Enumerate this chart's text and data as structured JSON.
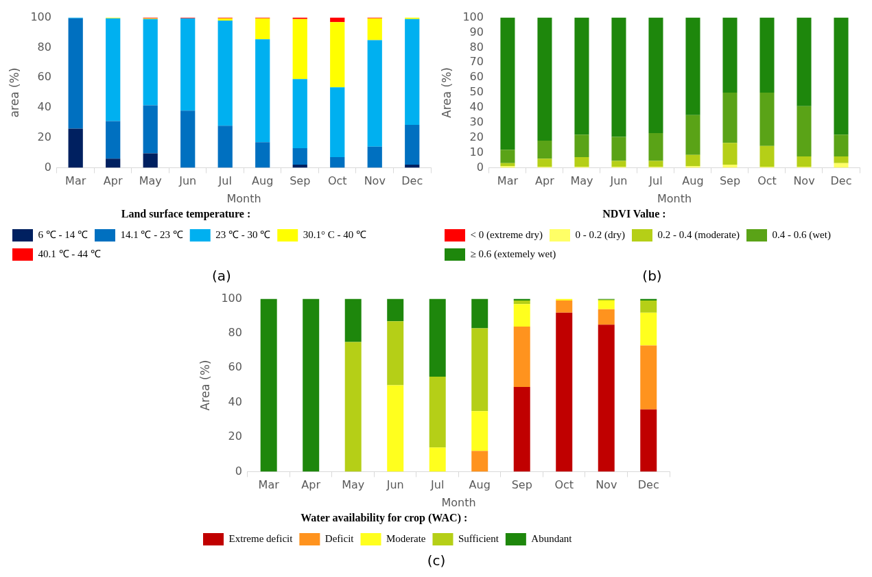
{
  "chart_data": [
    {
      "type": "bar",
      "stacked": true,
      "xlabel": "Month",
      "ylabel": "area (%)",
      "legend_title": "Land surface temperature :",
      "legend": "bottom",
      "grid": false,
      "annotations": [
        "(a)"
      ],
      "categories": [
        "Mar",
        "Apr",
        "May",
        "Jun",
        "Jul",
        "Aug",
        "Sep",
        "Oct",
        "Nov",
        "Dec"
      ],
      "ylim": [
        0,
        100
      ],
      "yticks": [
        0,
        20,
        40,
        60,
        80,
        100
      ],
      "series": [
        {
          "name": "6 ℃ - 14 ℃",
          "color": "#002060",
          "values": [
            26,
            6,
            9.5,
            0,
            0,
            0,
            2,
            0,
            0,
            2
          ]
        },
        {
          "name": "14.1 ℃ - 23 ℃",
          "color": "#0070c0",
          "values": [
            73.5,
            25,
            32,
            38,
            28,
            17,
            11,
            7,
            14,
            26.5
          ]
        },
        {
          "name": "23 ℃ - 30 ℃",
          "color": "#00b0f0",
          "values": [
            0.5,
            68.5,
            57.5,
            61.5,
            70,
            68.5,
            46,
            46.5,
            71,
            70.5
          ]
        },
        {
          "name": "30.1° C - 40 ℃",
          "color": "#ffff00",
          "values": [
            0,
            0.5,
            0.5,
            0,
            1.5,
            14,
            40,
            43.5,
            14.5,
            1
          ]
        },
        {
          "name": "40.1 ℃ - 44 ℃",
          "color": "#ff0000",
          "values": [
            0,
            0,
            0.5,
            0.5,
            0.5,
            0.5,
            1,
            3,
            0.5,
            0
          ]
        }
      ]
    },
    {
      "type": "bar",
      "stacked": true,
      "xlabel": "Month",
      "ylabel": "Area (%)",
      "legend_title": "NDVI Value :",
      "legend": "bottom",
      "grid": false,
      "annotations": [
        "(b)"
      ],
      "categories": [
        "Mar",
        "Apr",
        "May",
        "Jun",
        "Jul",
        "Aug",
        "Sep",
        "Oct",
        "Nov",
        "Dec"
      ],
      "ylim": [
        0,
        100
      ],
      "yticks": [
        0,
        10,
        20,
        30,
        40,
        50,
        60,
        70,
        80,
        90,
        100
      ],
      "series": [
        {
          "name": "< 0 (extreme dry)",
          "color": "#ff0000",
          "values": [
            0,
            0,
            0,
            0,
            0,
            0,
            0,
            0,
            0,
            0
          ]
        },
        {
          "name": "0 - 0.2 (dry)",
          "color": "#ffff66",
          "values": [
            1,
            0.5,
            0.5,
            0.5,
            0.5,
            1,
            2,
            0.5,
            0.5,
            3
          ]
        },
        {
          "name": "0.2 - 0.4 (moderate)",
          "color": "#b5cf17",
          "values": [
            2,
            5.5,
            6.5,
            4,
            4,
            7.5,
            14.5,
            14,
            7,
            4.5
          ]
        },
        {
          "name": "0.4 - 0.6 (wet)",
          "color": "#5aa317",
          "values": [
            9,
            12,
            15,
            16,
            18.5,
            26.5,
            33.5,
            35.5,
            33.5,
            14.5
          ]
        },
        {
          "name": "≥ 0.6 (extemely wet)",
          "color": "#1e870c",
          "values": [
            88,
            82,
            78,
            79.5,
            77,
            65,
            50,
            50,
            59,
            78
          ]
        }
      ]
    },
    {
      "type": "bar",
      "stacked": true,
      "xlabel": "Month",
      "ylabel": "Area (%)",
      "legend_title": "Water availability for crop (WAC) :",
      "legend": "bottom",
      "grid": false,
      "annotations": [
        "(c)"
      ],
      "categories": [
        "Mar",
        "Apr",
        "May",
        "Jun",
        "Jul",
        "Aug",
        "Sep",
        "Oct",
        "Nov",
        "Dec"
      ],
      "ylim": [
        0,
        100
      ],
      "yticks": [
        0,
        20,
        40,
        60,
        80,
        100
      ],
      "series": [
        {
          "name": "Extreme deficit",
          "color": "#c00000",
          "values": [
            0,
            0,
            0,
            0,
            0,
            0,
            49,
            92,
            85,
            36
          ]
        },
        {
          "name": "Deficit",
          "color": "#ff931e",
          "values": [
            0,
            0,
            0,
            0,
            0,
            12,
            35,
            7,
            9,
            37
          ]
        },
        {
          "name": "Moderate",
          "color": "#ffff1e",
          "values": [
            0,
            0,
            0,
            50,
            14,
            23,
            13,
            1,
            5,
            19
          ]
        },
        {
          "name": "Sufficient",
          "color": "#b5cf17",
          "values": [
            0,
            0,
            75,
            37,
            41,
            48,
            2,
            0,
            0.5,
            7
          ]
        },
        {
          "name": "Abundant",
          "color": "#1e870c",
          "values": [
            100,
            100,
            25,
            13,
            45,
            17,
            1,
            0,
            0.5,
            1
          ]
        }
      ]
    }
  ]
}
